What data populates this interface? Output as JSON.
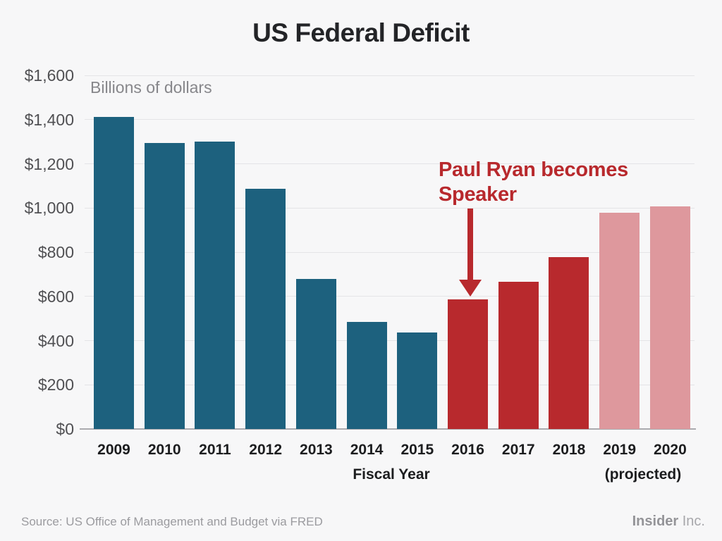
{
  "title": "US Federal Deficit",
  "chart_data": {
    "type": "bar",
    "title": "US Federal Deficit",
    "subtitle": "Billions of dollars",
    "xlabel": "Fiscal Year",
    "projected_note": "(projected)",
    "categories": [
      "2009",
      "2010",
      "2011",
      "2012",
      "2013",
      "2014",
      "2015",
      "2016",
      "2017",
      "2018",
      "2019",
      "2020"
    ],
    "values": [
      1413,
      1294,
      1300,
      1087,
      680,
      485,
      438,
      585,
      665,
      779,
      980,
      1008
    ],
    "bar_roles": [
      "actual",
      "actual",
      "actual",
      "actual",
      "actual",
      "actual",
      "actual",
      "highlight",
      "highlight",
      "highlight",
      "projected",
      "projected"
    ],
    "role_colors": {
      "actual": "#1d617e",
      "highlight": "#b8292d",
      "projected": "#de989d"
    },
    "ylim": [
      0,
      1600
    ],
    "ytick_interval": 200,
    "ytick_values": [
      0,
      200,
      400,
      600,
      800,
      1000,
      1200,
      1400,
      1600
    ],
    "ytick_labels": [
      "$0",
      "$200",
      "$400",
      "$600",
      "$800",
      "$1,000",
      "$1,200",
      "$1,400",
      "$1,600"
    ],
    "grid": true,
    "grid_color": "#e4e4e7",
    "axis_line_color": "#ababaf",
    "background_color": "#f7f7f8",
    "annotation": {
      "line1": "Paul Ryan becomes",
      "line2": "Speaker",
      "target_category": "2016",
      "color": "#b8292d"
    }
  },
  "footer": {
    "source": "Source: US Office of Management and Budget via FRED",
    "brand_bold": "Insider",
    "brand_regular": "Inc."
  }
}
